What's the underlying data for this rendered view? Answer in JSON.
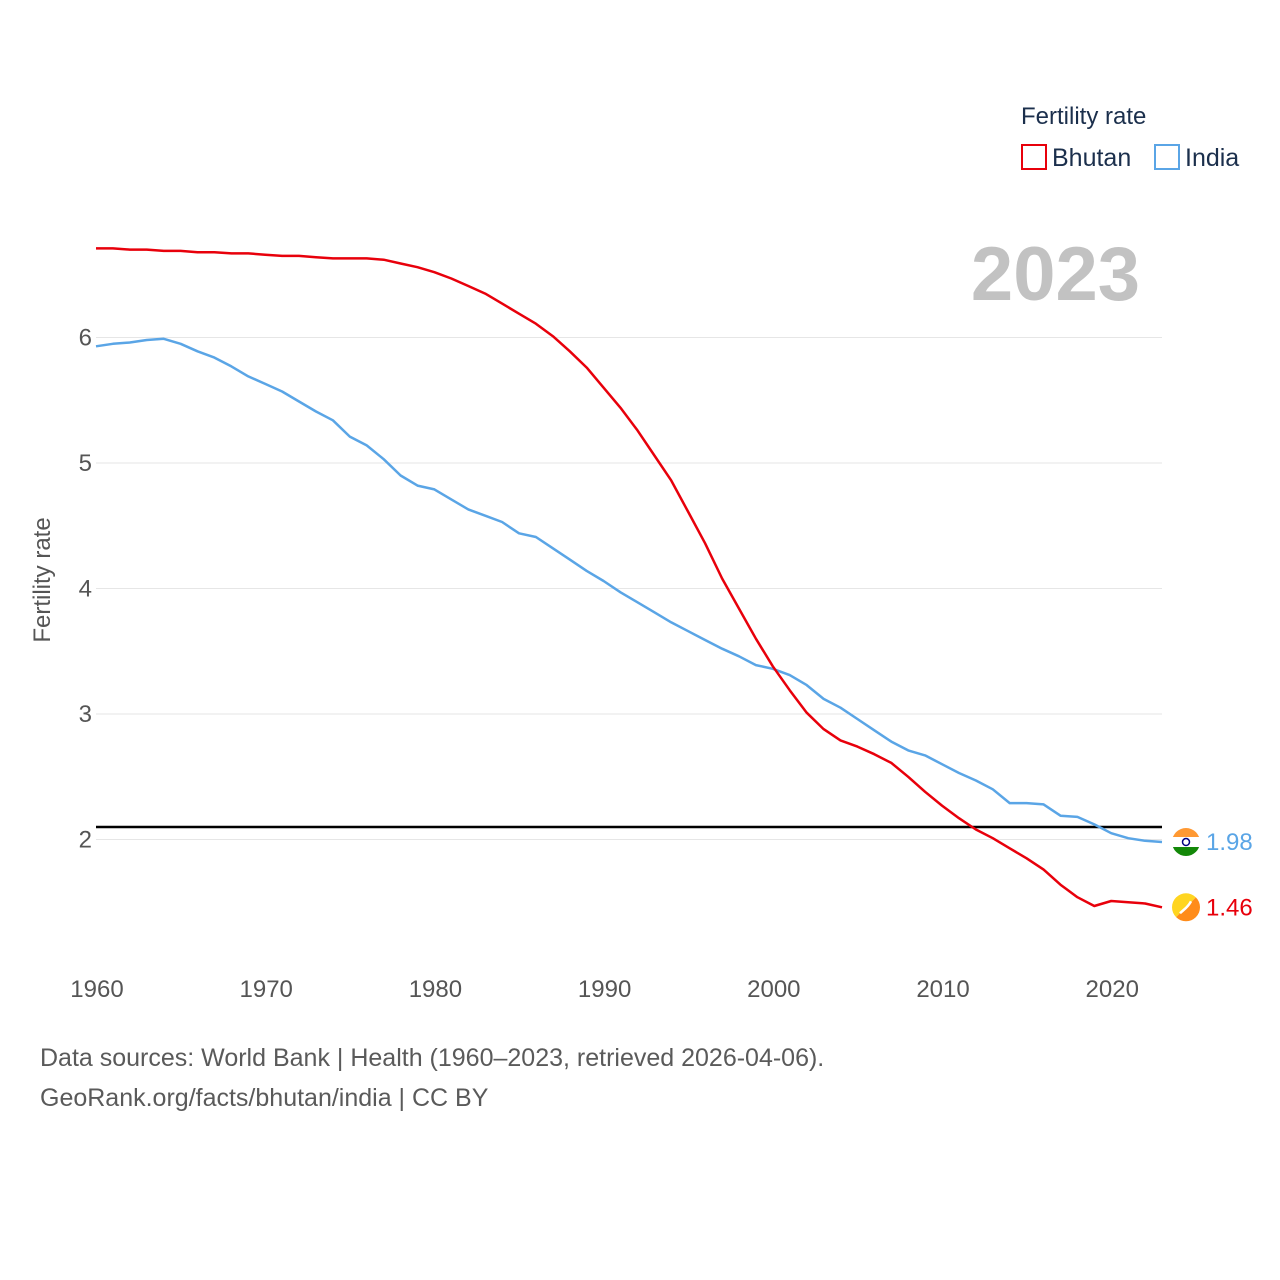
{
  "legend": {
    "title": "Fertility rate",
    "entries": [
      {
        "name": "Bhutan",
        "color": "#e8000b"
      },
      {
        "name": "India",
        "color": "#5aa5e6"
      }
    ]
  },
  "year_label": "2023",
  "source": {
    "line1": "Data sources: World Bank | Health (1960–2023, retrieved 2026-04-06).",
    "line2": "GeoRank.org/facts/bhutan/india | CC BY"
  },
  "chart_data": {
    "type": "line",
    "title": "Fertility rate",
    "xlabel": "",
    "ylabel": "Fertility rate",
    "xlim": [
      1960,
      2023
    ],
    "ylim": [
      1.0,
      7.0
    ],
    "x_ticks": [
      1960,
      1970,
      1980,
      1990,
      2000,
      2010,
      2020
    ],
    "y_ticks": [
      2,
      3,
      4,
      5,
      6
    ],
    "grid": true,
    "reference_line": {
      "value": 2.1,
      "color": "#000000"
    },
    "x": [
      1960,
      1961,
      1962,
      1963,
      1964,
      1965,
      1966,
      1967,
      1968,
      1969,
      1970,
      1971,
      1972,
      1973,
      1974,
      1975,
      1976,
      1977,
      1978,
      1979,
      1980,
      1981,
      1982,
      1983,
      1984,
      1985,
      1986,
      1987,
      1988,
      1989,
      1990,
      1991,
      1992,
      1993,
      1994,
      1995,
      1996,
      1997,
      1998,
      1999,
      2000,
      2001,
      2002,
      2003,
      2004,
      2005,
      2006,
      2007,
      2008,
      2009,
      2010,
      2011,
      2012,
      2013,
      2014,
      2015,
      2016,
      2017,
      2018,
      2019,
      2020,
      2021,
      2022,
      2023
    ],
    "series": [
      {
        "name": "Bhutan",
        "color": "#e8000b",
        "end_label": "1.46",
        "values": [
          6.71,
          6.71,
          6.7,
          6.7,
          6.69,
          6.69,
          6.68,
          6.68,
          6.67,
          6.67,
          6.66,
          6.65,
          6.65,
          6.64,
          6.63,
          6.63,
          6.63,
          6.62,
          6.59,
          6.56,
          6.52,
          6.47,
          6.41,
          6.35,
          6.27,
          6.19,
          6.11,
          6.01,
          5.89,
          5.76,
          5.6,
          5.44,
          5.26,
          5.06,
          4.86,
          4.61,
          4.36,
          4.08,
          3.84,
          3.6,
          3.38,
          3.19,
          3.01,
          2.88,
          2.79,
          2.74,
          2.68,
          2.61,
          2.5,
          2.38,
          2.27,
          2.17,
          2.08,
          2.01,
          1.93,
          1.85,
          1.76,
          1.64,
          1.54,
          1.47,
          1.51,
          1.5,
          1.49,
          1.46
        ]
      },
      {
        "name": "India",
        "color": "#5aa5e6",
        "end_label": "1.98",
        "values": [
          5.93,
          5.95,
          5.96,
          5.98,
          5.99,
          5.95,
          5.89,
          5.84,
          5.77,
          5.69,
          5.63,
          5.57,
          5.49,
          5.41,
          5.34,
          5.21,
          5.14,
          5.03,
          4.9,
          4.82,
          4.79,
          4.71,
          4.63,
          4.58,
          4.53,
          4.44,
          4.41,
          4.32,
          4.23,
          4.14,
          4.06,
          3.97,
          3.89,
          3.81,
          3.73,
          3.66,
          3.59,
          3.52,
          3.46,
          3.39,
          3.36,
          3.31,
          3.23,
          3.12,
          3.05,
          2.96,
          2.87,
          2.78,
          2.71,
          2.67,
          2.6,
          2.53,
          2.47,
          2.4,
          2.29,
          2.29,
          2.28,
          2.19,
          2.18,
          2.12,
          2.05,
          2.01,
          1.99,
          1.98
        ]
      }
    ]
  }
}
